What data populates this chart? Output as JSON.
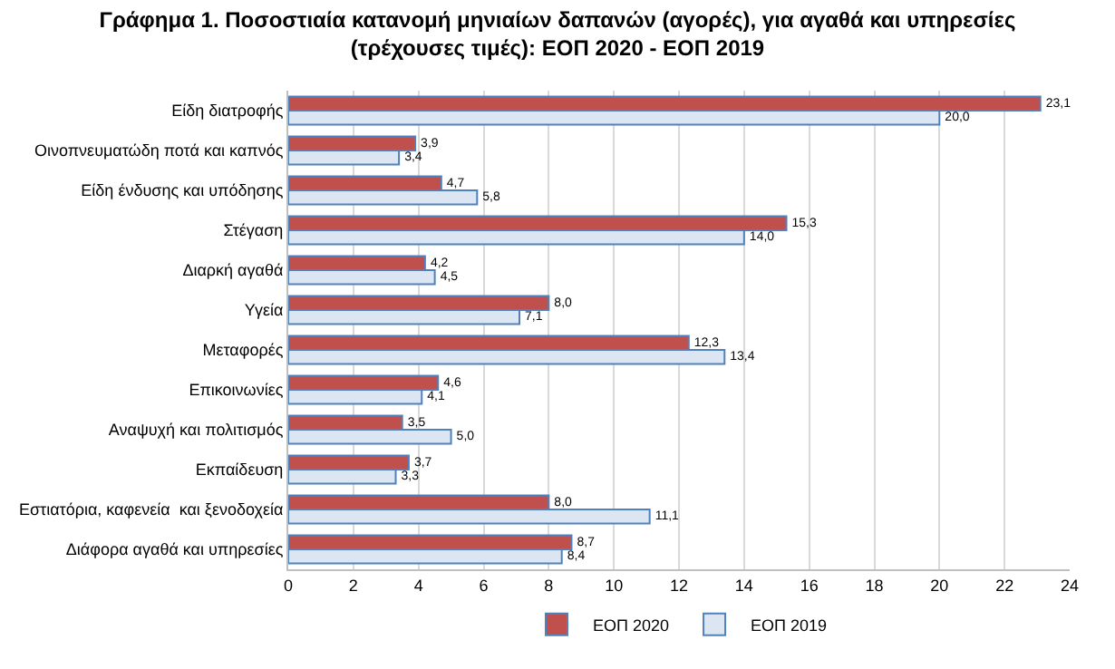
{
  "chart_data": {
    "type": "bar",
    "orientation": "horizontal",
    "title": "Γράφημα 1. Ποσοστιαία κατανομή μηνιαίων δαπανών (αγορές), για αγαθά και υπηρεσίες (τρέχουσες τιμές): ΕΟΠ 2020 - ΕΟΠ 2019",
    "categories": [
      "Είδη διατροφής",
      "Οινοπνευματώδη ποτά και καπνός",
      "Είδη ένδυσης και υπόδησης",
      "Στέγαση",
      "Διαρκή αγαθά",
      "Υγεία",
      "Μεταφορές",
      "Επικοινωνίες",
      "Αναψυχή και πολιτισμός",
      "Εκπαίδευση",
      "Εστιατόρια, καφενεία  και ξενοδοχεία",
      "Διάφορα αγαθά και υπηρεσίες"
    ],
    "series": [
      {
        "name": "ΕΟΠ 2020",
        "color": "#c0504d",
        "values": [
          23.1,
          3.9,
          4.7,
          15.3,
          4.2,
          8.0,
          12.3,
          4.6,
          3.5,
          3.7,
          8.0,
          8.7
        ],
        "value_labels": [
          "23,1",
          "3,9",
          "4,7",
          "15,3",
          "4,2",
          "8,0",
          "12,3",
          "4,6",
          "3,5",
          "3,7",
          "8,0",
          "8,7"
        ]
      },
      {
        "name": "ΕΟΠ 2019",
        "color": "#dce6f2",
        "values": [
          20.0,
          3.4,
          5.8,
          14.0,
          4.5,
          7.1,
          13.4,
          4.1,
          5.0,
          3.3,
          11.1,
          8.4
        ],
        "value_labels": [
          "20,0",
          "3,4",
          "5,8",
          "14,0",
          "4,5",
          "7,1",
          "13,4",
          "4,1",
          "5,0",
          "3,3",
          "11,1",
          "8,4"
        ]
      }
    ],
    "xlim": [
      0,
      24
    ],
    "xticks": [
      0,
      2,
      4,
      6,
      8,
      10,
      12,
      14,
      16,
      18,
      20,
      22,
      24
    ],
    "grid": "x",
    "legend": "bottom"
  }
}
